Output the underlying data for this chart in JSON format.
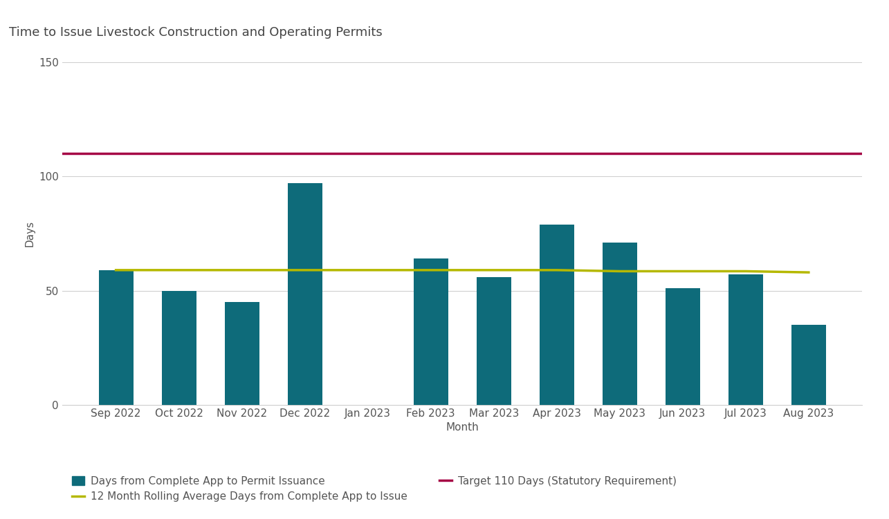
{
  "title": "Time to Issue Livestock Construction and Operating Permits",
  "categories": [
    "Sep 2022",
    "Oct 2022",
    "Nov 2022",
    "Dec 2022",
    "Jan 2023",
    "Feb 2023",
    "Mar 2023",
    "Apr 2023",
    "May 2023",
    "Jun 2023",
    "Jul 2023",
    "Aug 2023"
  ],
  "bar_values": [
    59,
    50,
    45,
    97,
    0,
    64,
    56,
    79,
    71,
    51,
    57,
    35
  ],
  "bar_color": "#0e6b7a",
  "rolling_avg_y": [
    59,
    59,
    59,
    59,
    59,
    59,
    59,
    59,
    58.5,
    58.5,
    58.5,
    58
  ],
  "rolling_avg_color": "#b5b800",
  "target_value": 110,
  "target_color": "#a50044",
  "ylabel": "Days",
  "xlabel": "Month",
  "ylim": [
    0,
    150
  ],
  "yticks": [
    0,
    50,
    100,
    150
  ],
  "background_color": "#ffffff",
  "title_fontsize": 13,
  "axis_fontsize": 11,
  "tick_fontsize": 11,
  "legend_fontsize": 11,
  "legend_label_bar": "Days from Complete App to Permit Issuance",
  "legend_label_avg": "12 Month Rolling Average Days from Complete App to Issue",
  "legend_label_target": "Target 110 Days (Statutory Requirement)",
  "grid_color": "#d0d0d0",
  "spine_color": "#d0d0d0",
  "text_color": "#555555"
}
